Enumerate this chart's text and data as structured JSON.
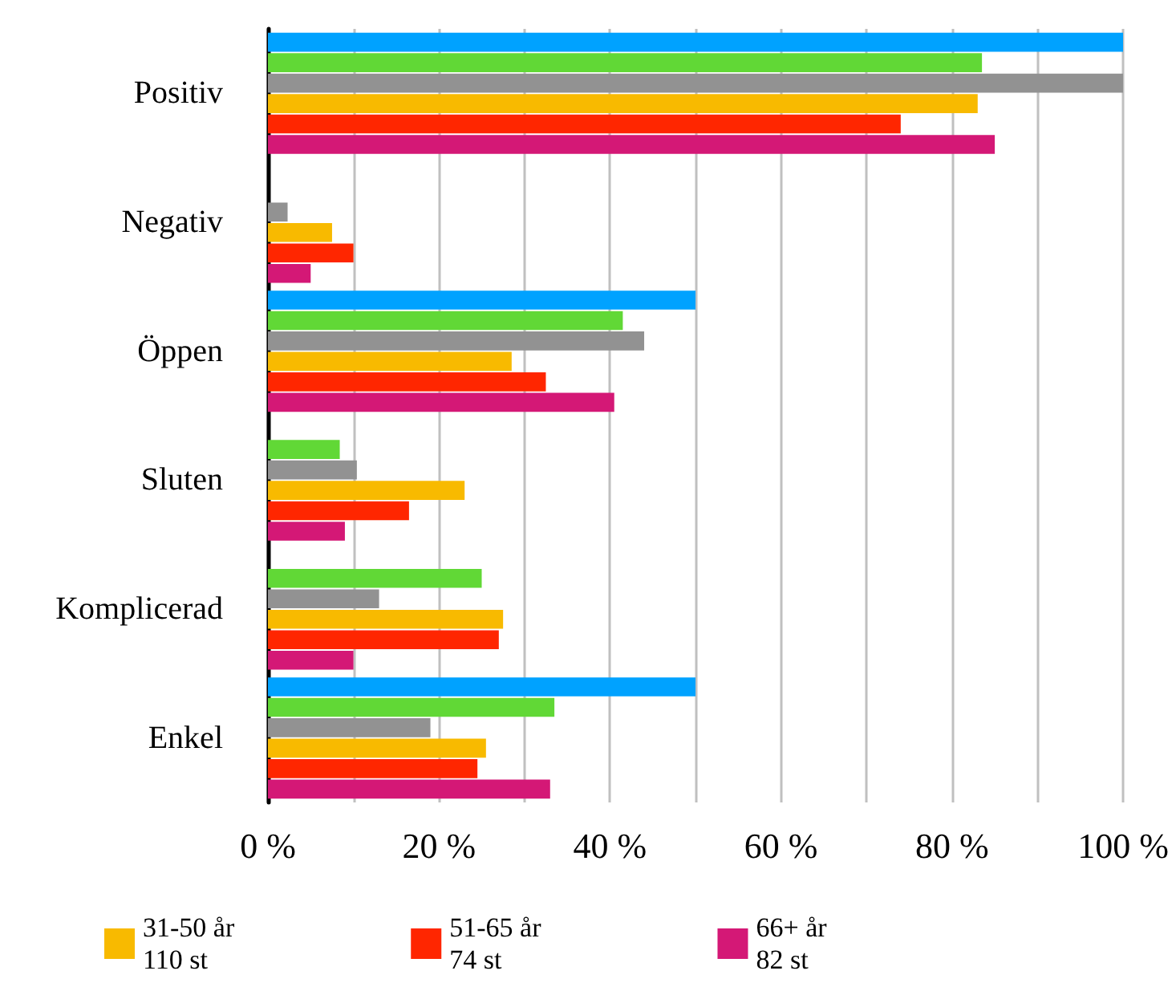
{
  "chart_data": {
    "type": "bar",
    "orientation": "horizontal",
    "categories": [
      "Positiv",
      "Negativ",
      "Öppen",
      "Sluten",
      "Komplicerad",
      "Enkel"
    ],
    "series": [
      {
        "color": "#00a2ff",
        "values": [
          100,
          0,
          50,
          0,
          0,
          50
        ]
      },
      {
        "color": "#61d836",
        "values": [
          83.5,
          0,
          41.5,
          8.4,
          25,
          33.5
        ]
      },
      {
        "color": "#929292",
        "values": [
          100,
          2.3,
          44,
          10.4,
          13,
          19
        ]
      },
      {
        "name": "31-50 år\n110 st",
        "color": "#f8ba00",
        "values": [
          83,
          7.5,
          28.5,
          23,
          27.5,
          25.5
        ]
      },
      {
        "name": "51-65 år\n74 st",
        "color": "#ff2600",
        "values": [
          74,
          10,
          32.5,
          16.5,
          27,
          24.5
        ]
      },
      {
        "name": "66+ år\n82 st",
        "color": "#d41876",
        "values": [
          85,
          5,
          40.5,
          9,
          10,
          33
        ]
      }
    ],
    "xlim": [
      0,
      100
    ],
    "xticks": [
      {
        "value": 0,
        "label": "0 %"
      },
      {
        "value": 10,
        "label": null
      },
      {
        "value": 20,
        "label": "20 %"
      },
      {
        "value": 30,
        "label": null
      },
      {
        "value": 40,
        "label": "40 %"
      },
      {
        "value": 50,
        "label": null
      },
      {
        "value": 60,
        "label": "60 %"
      },
      {
        "value": 70,
        "label": null
      },
      {
        "value": 80,
        "label": "80 %"
      },
      {
        "value": 90,
        "label": null
      },
      {
        "value": 100,
        "label": "100 %"
      }
    ],
    "grid": "x",
    "legend": "bottom"
  }
}
